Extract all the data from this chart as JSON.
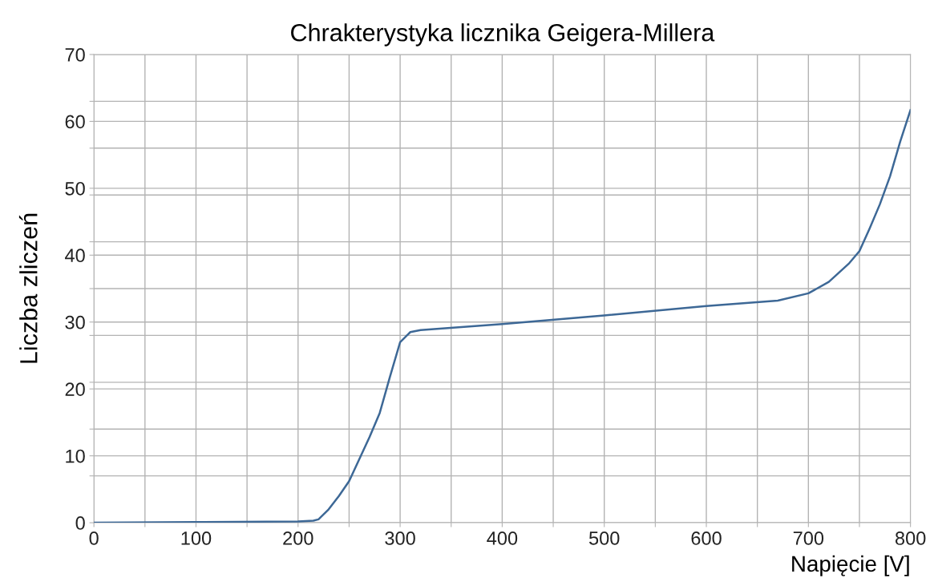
{
  "chart_data": {
    "type": "line",
    "title": "Chrakterystyka licznika Geigera-Millera",
    "xlabel": "Napięcie [V]",
    "ylabel": "Liczba zliczeń",
    "x": [
      0,
      100,
      200,
      215,
      220,
      230,
      240,
      250,
      260,
      270,
      280,
      290,
      300,
      310,
      320,
      400,
      500,
      600,
      670,
      700,
      720,
      740,
      750,
      760,
      770,
      780,
      790,
      800
    ],
    "series": [
      {
        "color": "#3d6896",
        "values": [
          0,
          0.1,
          0.2,
          0.3,
          0.5,
          2,
          4,
          6.2,
          9.5,
          12.8,
          16.4,
          21.8,
          27,
          28.5,
          28.8,
          29.7,
          31,
          32.4,
          33.2,
          34.3,
          36,
          38.8,
          40.6,
          44,
          47.6,
          51.8,
          57,
          61.7
        ]
      }
    ],
    "xlim": [
      0,
      800
    ],
    "ylim": [
      0,
      70
    ],
    "xticks": [
      0,
      {
        "value": 50,
        "label": null
      },
      100,
      {
        "value": 150,
        "label": null
      },
      200,
      {
        "value": 250,
        "label": null
      },
      300,
      {
        "value": 350,
        "label": null
      },
      400,
      {
        "value": 450,
        "label": null
      },
      500,
      {
        "value": 550,
        "label": null
      },
      600,
      {
        "value": 650,
        "label": null
      },
      700,
      {
        "value": 750,
        "label": null
      },
      800
    ],
    "yticks": [
      0,
      {
        "value": 7,
        "label": null
      },
      10,
      {
        "value": 14,
        "label": null
      },
      20,
      {
        "value": 21,
        "label": null
      },
      {
        "value": 28,
        "label": null
      },
      30,
      {
        "value": 35,
        "label": null
      },
      40,
      {
        "value": 42,
        "label": null
      },
      {
        "value": 49,
        "label": null
      },
      50,
      {
        "value": 56,
        "label": null
      },
      60,
      {
        "value": 63,
        "label": null
      },
      70
    ],
    "grid": true,
    "marker": "none",
    "line_style": "solid"
  }
}
